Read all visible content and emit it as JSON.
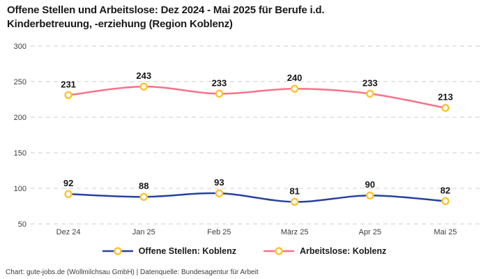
{
  "title": {
    "line1": "Offene Stellen und Arbeitslose: Dez 2024 - Mai 2025 für Berufe i.d.",
    "line2": "Kinderbetreuung, -erziehung (Region Koblenz)"
  },
  "footer": "Chart: gute-jobs.de (Wollmilchsau GmbH) | Datenquelle: Bundesagentur für Arbeit",
  "colors": {
    "title_text": "#1a1a1a",
    "axis_text": "#3d3d3d",
    "gridline": "#cccccc",
    "data_label": "#161616",
    "marker_fill": "#ffffff",
    "marker_stroke": "#fdc433",
    "series_open_positions": "#2840a0",
    "series_unemployed": "#f9718a"
  },
  "chart_data": {
    "type": "line",
    "title": "Offene Stellen und Arbeitslose: Dez 2024 - Mai 2025 für Berufe i.d. Kinderbetreuung, -erziehung (Region Koblenz)",
    "categories": [
      "Dez 24",
      "Jan 25",
      "Feb 25",
      "März 25",
      "Apr 25",
      "Mai 25"
    ],
    "series": [
      {
        "name": "Offene Stellen: Koblenz",
        "color": "#2840a0",
        "values": [
          92,
          88,
          93,
          81,
          90,
          82
        ]
      },
      {
        "name": "Arbeitslose: Koblenz",
        "color": "#f9718a",
        "values": [
          231,
          243,
          233,
          240,
          233,
          213
        ]
      }
    ],
    "yticks": [
      300,
      250,
      200,
      150,
      100,
      50
    ],
    "ylim": [
      50,
      300
    ],
    "xlabel": "",
    "ylabel": "",
    "grid": "horizontal-dashed",
    "legend_position": "bottom",
    "data_labels": true,
    "marker": {
      "shape": "circle",
      "fill": "#ffffff",
      "stroke": "#fdc433"
    }
  }
}
